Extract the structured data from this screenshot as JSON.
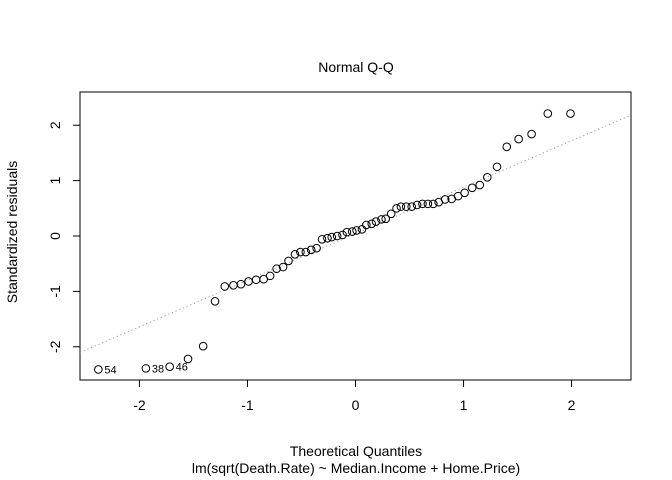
{
  "chart_data": {
    "type": "scatter",
    "title": "Normal Q-Q",
    "xlabel": "Theoretical Quantiles",
    "subtitle": "lm(sqrt(Death.Rate) ~ Median.Income + Home.Price)",
    "ylabel": "Standardized residuals",
    "xlim": [
      -2.55,
      2.55
    ],
    "ylim": [
      -2.6,
      2.6
    ],
    "x_ticks": [
      -2,
      -1,
      0,
      1,
      2
    ],
    "x_tick_labels": [
      "-2",
      "-1",
      "0",
      "1",
      "2"
    ],
    "y_ticks": [
      -2,
      -1,
      0,
      1,
      2
    ],
    "y_tick_labels": [
      "-2",
      "-1",
      "0",
      "1",
      "2"
    ],
    "grid": false,
    "reference_line": {
      "style": "dotted",
      "color": "#999999",
      "slope": 0.84,
      "intercept": 0.04
    },
    "points": {
      "x": [
        -2.38,
        -1.94,
        -1.72,
        -1.55,
        -1.41,
        -1.3,
        -1.21,
        -1.13,
        -1.06,
        -0.99,
        -0.92,
        -0.85,
        -0.79,
        -0.73,
        -0.67,
        -0.62,
        -0.56,
        -0.51,
        -0.46,
        -0.41,
        -0.36,
        -0.31,
        -0.26,
        -0.22,
        -0.17,
        -0.12,
        -0.08,
        -0.03,
        0.01,
        0.06,
        0.1,
        0.15,
        0.19,
        0.24,
        0.28,
        0.33,
        0.38,
        0.42,
        0.47,
        0.52,
        0.57,
        0.62,
        0.67,
        0.72,
        0.77,
        0.83,
        0.89,
        0.95,
        1.01,
        1.08,
        1.15,
        1.22,
        1.31,
        1.4,
        1.51,
        1.63,
        1.78,
        1.99
      ],
      "y": [
        -2.41,
        -2.39,
        -2.36,
        -2.22,
        -1.99,
        -1.18,
        -0.91,
        -0.89,
        -0.87,
        -0.82,
        -0.79,
        -0.78,
        -0.72,
        -0.59,
        -0.56,
        -0.45,
        -0.33,
        -0.29,
        -0.29,
        -0.25,
        -0.22,
        -0.06,
        -0.04,
        -0.02,
        0.0,
        0.02,
        0.07,
        0.08,
        0.1,
        0.12,
        0.2,
        0.22,
        0.26,
        0.3,
        0.31,
        0.4,
        0.5,
        0.53,
        0.53,
        0.53,
        0.56,
        0.58,
        0.58,
        0.58,
        0.61,
        0.66,
        0.67,
        0.72,
        0.78,
        0.87,
        0.92,
        1.06,
        1.25,
        1.61,
        1.75,
        1.84,
        2.21,
        2.21
      ],
      "labels": {
        "0": "54",
        "1": "38",
        "2": "46"
      }
    }
  }
}
